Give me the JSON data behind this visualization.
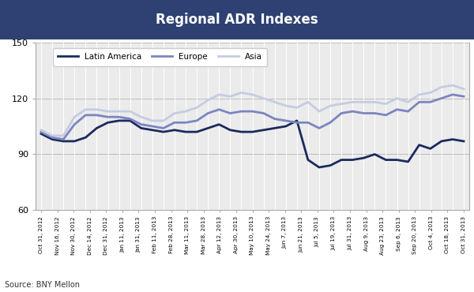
{
  "title": "Regional ADR Indexes",
  "title_bg_color": "#2e4172",
  "title_text_color": "#ffffff",
  "source_text": "Source: BNY Mellon",
  "ylim": [
    60,
    150
  ],
  "yticks": [
    60,
    90,
    120,
    150
  ],
  "background_color": "#ffffff",
  "plot_bg_color": "#ebebeb",
  "grid_color": "#ffffff",
  "series_order": [
    "Latin America",
    "Europe",
    "Asia"
  ],
  "series": {
    "Latin America": {
      "color": "#1a2a5e",
      "linewidth": 2.0
    },
    "Europe": {
      "color": "#7b85bf",
      "linewidth": 2.0
    },
    "Asia": {
      "color": "#c5cce0",
      "linewidth": 2.0
    }
  },
  "latin_america": [
    101,
    98,
    97,
    97,
    99,
    104,
    107,
    108,
    108,
    104,
    103,
    102,
    103,
    102,
    102,
    104,
    106,
    103,
    102,
    102,
    103,
    104,
    105,
    108,
    87,
    83,
    84,
    87,
    87,
    88,
    90,
    87,
    87,
    86,
    95,
    93,
    97,
    98,
    97
  ],
  "europe": [
    102,
    99,
    98,
    106,
    111,
    111,
    110,
    110,
    109,
    106,
    105,
    104,
    107,
    107,
    108,
    112,
    114,
    112,
    113,
    113,
    112,
    109,
    108,
    107,
    107,
    104,
    107,
    112,
    113,
    112,
    112,
    111,
    114,
    113,
    118,
    118,
    120,
    122,
    121
  ],
  "asia": [
    103,
    100,
    100,
    110,
    114,
    114,
    113,
    113,
    113,
    110,
    108,
    108,
    112,
    113,
    115,
    119,
    122,
    121,
    123,
    122,
    120,
    118,
    116,
    115,
    118,
    113,
    116,
    117,
    118,
    118,
    118,
    117,
    120,
    118,
    122,
    123,
    126,
    127,
    125
  ],
  "x_tick_labels": [
    "Oct 31, 2012",
    "Nov 16, 2012",
    "Nov 30, 2012",
    "Dec 14, 2012",
    "Dec 31, 2012",
    "Jan 11, 2013",
    "Jan 31, 2013",
    "Feb 11, 2013",
    "Feb 28, 2013",
    "Mar 11, 2013",
    "Mar 28, 2013",
    "Apr 12, 2013",
    "Apr 30, 2013",
    "May 10, 2013",
    "May 24, 2013",
    "Jun 7, 2013",
    "Jun 21, 2013",
    "Jul 5, 2013",
    "Jul 19, 2013",
    "Jul 31, 2013",
    "Aug 9, 2013",
    "Aug 23, 2013",
    "Sep 6, 2013",
    "Sep 20, 2013",
    "Oct 4, 2013",
    "Oct 18, 2013",
    "Oct 31, 2013"
  ]
}
